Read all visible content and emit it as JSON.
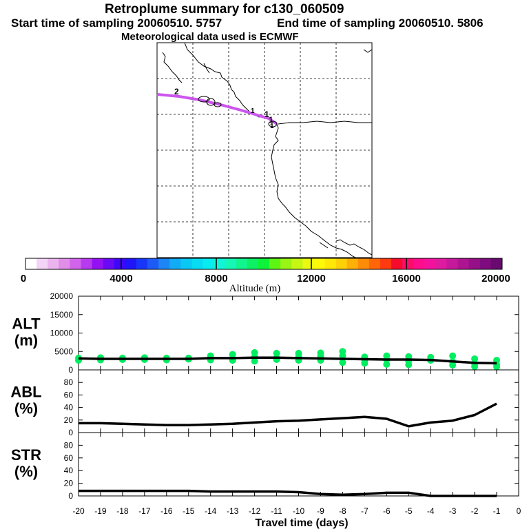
{
  "header": {
    "title": "Retroplume summary for c130_060509",
    "start_time": "Start time of sampling 20060510.  5757",
    "end_time": "End time of sampling 20060510.  5806",
    "met_data": "Meteorological data used is ECMWF"
  },
  "map": {
    "trajectory_label": "2",
    "release_labels": [
      "1",
      "1",
      "1",
      "1"
    ]
  },
  "colorbar": {
    "ticks": [
      "0",
      "4000",
      "8000",
      "12000",
      "16000",
      "20000"
    ],
    "label": "Altitude (m)",
    "colors": [
      "#ffffff",
      "#f4d4f6",
      "#ecb4ee",
      "#e08ee8",
      "#d264ec",
      "#b83aee",
      "#9412f2",
      "#6a0af4",
      "#3e08f6",
      "#2014f8",
      "#1836f8",
      "#1e5af6",
      "#1c86f6",
      "#12acf6",
      "#0ac8f4",
      "#08dcf2",
      "#08ecf0",
      "#10f4d8",
      "#16f6b4",
      "#12f48e",
      "#0cf264",
      "#0ef23a",
      "#5ef414",
      "#9af414",
      "#c6f614",
      "#eaf814",
      "#fef80a",
      "#fee808",
      "#fed008",
      "#feb008",
      "#fe8c08",
      "#fe6608",
      "#fe3a10",
      "#f40c2a",
      "#fe0c6a",
      "#fe0c8c",
      "#f2129c",
      "#de1aa0",
      "#c6189a",
      "#ae1492",
      "#961088",
      "#7e0c7e",
      "#680a70"
    ]
  },
  "chart_data": [
    {
      "type": "line",
      "name": "ALT",
      "ylabel": "ALT\n(m)",
      "ylabel_lines": [
        "ALT",
        "(m)"
      ],
      "ylim": [
        0,
        20000
      ],
      "yticks": [
        "20000",
        "15000",
        "10000",
        "5000",
        "0"
      ],
      "x": [
        -20,
        -19,
        -18,
        -17,
        -16,
        -15,
        -14,
        -13,
        -12,
        -11,
        -10,
        -9,
        -8,
        -7,
        -6,
        -5,
        -4,
        -3,
        -2,
        -1
      ],
      "values": [
        3100,
        3000,
        3000,
        3000,
        3000,
        3000,
        3200,
        3200,
        3300,
        3300,
        3200,
        3100,
        3000,
        2900,
        2800,
        2800,
        2700,
        2300,
        1900,
        1800
      ],
      "scatter": [
        {
          "x": -20,
          "y": 3200
        },
        {
          "x": -20,
          "y": 2600
        },
        {
          "x": -19,
          "y": 3300
        },
        {
          "x": -19,
          "y": 2700
        },
        {
          "x": -18,
          "y": 3200
        },
        {
          "x": -18,
          "y": 2800
        },
        {
          "x": -17,
          "y": 3300
        },
        {
          "x": -17,
          "y": 2800
        },
        {
          "x": -16,
          "y": 3200
        },
        {
          "x": -16,
          "y": 2700
        },
        {
          "x": -15,
          "y": 3200
        },
        {
          "x": -15,
          "y": 2900
        },
        {
          "x": -14,
          "y": 3800
        },
        {
          "x": -14,
          "y": 3000
        },
        {
          "x": -14,
          "y": 2700
        },
        {
          "x": -13,
          "y": 4200
        },
        {
          "x": -13,
          "y": 3200
        },
        {
          "x": -13,
          "y": 2600
        },
        {
          "x": -12,
          "y": 4700
        },
        {
          "x": -12,
          "y": 3500
        },
        {
          "x": -12,
          "y": 2400
        },
        {
          "x": -11,
          "y": 4500
        },
        {
          "x": -11,
          "y": 3200
        },
        {
          "x": -11,
          "y": 2800
        },
        {
          "x": -10,
          "y": 4500
        },
        {
          "x": -10,
          "y": 3500
        },
        {
          "x": -10,
          "y": 2600
        },
        {
          "x": -9,
          "y": 4600
        },
        {
          "x": -9,
          "y": 3700
        },
        {
          "x": -9,
          "y": 2600
        },
        {
          "x": -8,
          "y": 5000
        },
        {
          "x": -8,
          "y": 3800
        },
        {
          "x": -8,
          "y": 2000
        },
        {
          "x": -7,
          "y": 3500
        },
        {
          "x": -7,
          "y": 2700
        },
        {
          "x": -7,
          "y": 1800
        },
        {
          "x": -6,
          "y": 3800
        },
        {
          "x": -6,
          "y": 2800
        },
        {
          "x": -6,
          "y": 1500
        },
        {
          "x": -5,
          "y": 3600
        },
        {
          "x": -5,
          "y": 2400
        },
        {
          "x": -5,
          "y": 1400
        },
        {
          "x": -4,
          "y": 3400
        },
        {
          "x": -4,
          "y": 2600
        },
        {
          "x": -3,
          "y": 3800
        },
        {
          "x": -3,
          "y": 2200
        },
        {
          "x": -3,
          "y": 1300
        },
        {
          "x": -2,
          "y": 3000
        },
        {
          "x": -2,
          "y": 1700
        },
        {
          "x": -2,
          "y": 900
        },
        {
          "x": -1,
          "y": 2600
        },
        {
          "x": -1,
          "y": 1400
        },
        {
          "x": -1,
          "y": 800
        }
      ],
      "scatter_color": "#00ee60"
    },
    {
      "type": "line",
      "name": "ABL",
      "ylabel_lines": [
        "ABL",
        "(%)"
      ],
      "ylim": [
        0,
        100
      ],
      "yticks": [
        "80",
        "60",
        "40",
        "20",
        "0"
      ],
      "ytick_values": [
        80,
        60,
        40,
        20,
        0
      ],
      "x": [
        -20,
        -19,
        -18,
        -17,
        -16,
        -15,
        -14,
        -13,
        -12,
        -11,
        -10,
        -9,
        -8,
        -7,
        -6,
        -5,
        -4,
        -3,
        -2,
        -1
      ],
      "values": [
        15,
        15,
        14,
        13,
        12,
        12,
        13,
        14,
        16,
        18,
        19,
        21,
        23,
        25,
        22,
        10,
        16,
        19,
        28,
        46
      ]
    },
    {
      "type": "line",
      "name": "STR",
      "ylabel_lines": [
        "STR",
        "(%)"
      ],
      "ylim": [
        0,
        100
      ],
      "yticks": [
        "80",
        "60",
        "40",
        "20",
        "0"
      ],
      "ytick_values": [
        80,
        60,
        40,
        20,
        0
      ],
      "x": [
        -20,
        -19,
        -18,
        -17,
        -16,
        -15,
        -14,
        -13,
        -12,
        -11,
        -10,
        -9,
        -8,
        -7,
        -6,
        -5,
        -4,
        -3,
        -2,
        -1
      ],
      "values": [
        8,
        8,
        8,
        8,
        8,
        8,
        7,
        7,
        7,
        7,
        6,
        3,
        2,
        3,
        5,
        5,
        0,
        0,
        0,
        0
      ],
      "xlabel": "Travel time (days)",
      "xticks": [
        "-20",
        "-19",
        "-18",
        "-17",
        "-16",
        "-15",
        "-14",
        "-13",
        "-12",
        "-11",
        "-10",
        "-9",
        "-8",
        "-7",
        "-6",
        "-5",
        "-4",
        "-3",
        "-2",
        "-1",
        "0"
      ]
    }
  ]
}
